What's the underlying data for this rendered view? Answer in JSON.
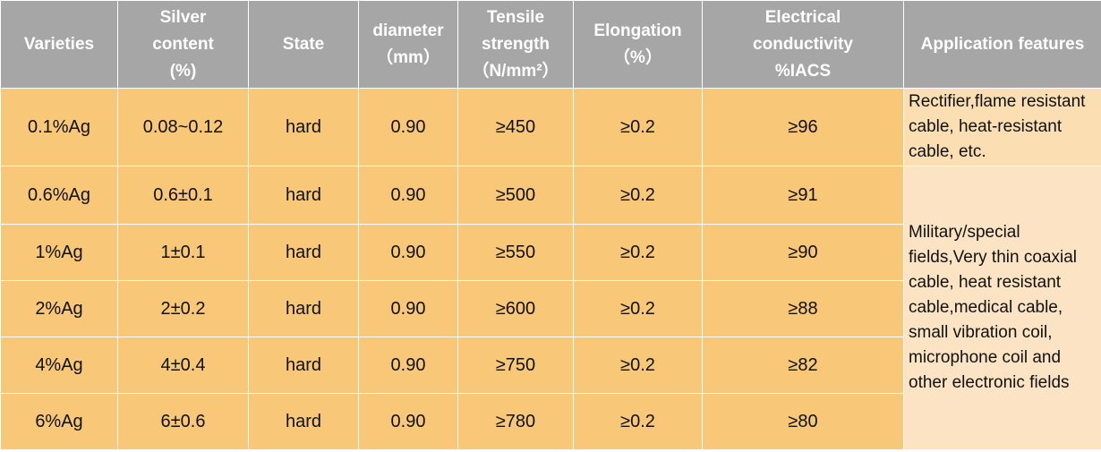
{
  "table": {
    "headers": [
      [
        "Varieties"
      ],
      [
        "Silver",
        "content",
        "(%)"
      ],
      [
        "State"
      ],
      [
        "diameter",
        "（mm）"
      ],
      [
        "Tensile",
        "strength",
        "（N/mm²）"
      ],
      [
        "Elongation",
        "（%）"
      ],
      [
        "Electrical",
        "conductivity",
        "%IACS"
      ],
      [
        "Application features"
      ]
    ],
    "rows": [
      [
        "0.1%Ag",
        "0.08~0.12",
        "hard",
        "0.90",
        "≥450",
        "≥0.2",
        "≥96"
      ],
      [
        "0.6%Ag",
        "0.6±0.1",
        "hard",
        "0.90",
        "≥500",
        "≥0.2",
        "≥91"
      ],
      [
        "1%Ag",
        "1±0.1",
        "hard",
        "0.90",
        "≥550",
        "≥0.2",
        "≥90"
      ],
      [
        "2%Ag",
        "2±0.2",
        "hard",
        "0.90",
        "≥600",
        "≥0.2",
        "≥88"
      ],
      [
        "4%Ag",
        "4±0.4",
        "hard",
        "0.90",
        "≥750",
        "≥0.2",
        "≥82"
      ],
      [
        "6%Ag",
        "6±0.6",
        "hard",
        "0.90",
        "≥780",
        "≥0.2",
        "≥80"
      ]
    ],
    "applications": [
      "Rectifier,flame resistant cable, heat-resistant cable, etc.",
      "Military/special fields,Very thin coaxial cable, heat resistant cable,medical cable, small vibration coil, microphone coil and other electronic fields"
    ]
  },
  "colors": {
    "header_bg": "#a6a6a6",
    "cell_bg": "#f8c878",
    "app_bg_1": "#fbdfb3",
    "app_bg_2": "#fce3c3"
  }
}
